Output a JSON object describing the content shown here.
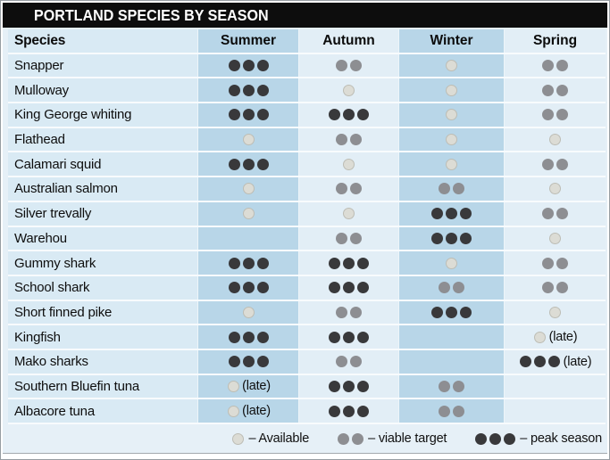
{
  "title": "PORTLAND SPECIES BY SEASON",
  "table": {
    "species_header": "Species",
    "season_headers": [
      "Summer",
      "Autumn",
      "Winter",
      "Spring"
    ]
  },
  "legend": {
    "items": [
      {
        "dots": 1,
        "label": "– Available"
      },
      {
        "dots": 2,
        "label": "– viable target"
      },
      {
        "dots": 3,
        "label": "– peak season"
      }
    ]
  },
  "colors": {
    "title_bar": "#0d0d0d",
    "canvas": "#e6f0f7",
    "band": "#b8d6e8",
    "row_species": "#d9eaf4",
    "row_light": "#e2eef6",
    "separator": "#f8fbfd",
    "dot_peak": "#39393b",
    "dot_viable": "#8d8e92",
    "dot_available_fill": "#dcdcd5",
    "dot_available_border": "#bdbdb5"
  },
  "chart_data": {
    "type": "table",
    "title": "PORTLAND SPECIES BY SEASON",
    "columns": [
      "Species",
      "Summer",
      "Autumn",
      "Winter",
      "Spring"
    ],
    "dot_scale": {
      "0": "not shown",
      "1": "Available",
      "2": "viable target",
      "3": "peak season"
    },
    "rows": [
      {
        "species": "Snapper",
        "summer": {
          "dots": 3
        },
        "autumn": {
          "dots": 2
        },
        "winter": {
          "dots": 1
        },
        "spring": {
          "dots": 2
        }
      },
      {
        "species": "Mulloway",
        "summer": {
          "dots": 3
        },
        "autumn": {
          "dots": 1
        },
        "winter": {
          "dots": 1
        },
        "spring": {
          "dots": 2
        }
      },
      {
        "species": "King George whiting",
        "summer": {
          "dots": 3
        },
        "autumn": {
          "dots": 3
        },
        "winter": {
          "dots": 1
        },
        "spring": {
          "dots": 2
        }
      },
      {
        "species": "Flathead",
        "summer": {
          "dots": 1
        },
        "autumn": {
          "dots": 2
        },
        "winter": {
          "dots": 1
        },
        "spring": {
          "dots": 1
        }
      },
      {
        "species": "Calamari squid",
        "summer": {
          "dots": 3
        },
        "autumn": {
          "dots": 1
        },
        "winter": {
          "dots": 1
        },
        "spring": {
          "dots": 2
        }
      },
      {
        "species": "Australian salmon",
        "summer": {
          "dots": 1
        },
        "autumn": {
          "dots": 2
        },
        "winter": {
          "dots": 2
        },
        "spring": {
          "dots": 1
        }
      },
      {
        "species": "Silver trevally",
        "summer": {
          "dots": 1
        },
        "autumn": {
          "dots": 1
        },
        "winter": {
          "dots": 3
        },
        "spring": {
          "dots": 2
        }
      },
      {
        "species": "Warehou",
        "summer": {
          "dots": 0
        },
        "autumn": {
          "dots": 2
        },
        "winter": {
          "dots": 3
        },
        "spring": {
          "dots": 1
        }
      },
      {
        "species": "Gummy shark",
        "summer": {
          "dots": 3
        },
        "autumn": {
          "dots": 3
        },
        "winter": {
          "dots": 1
        },
        "spring": {
          "dots": 2
        }
      },
      {
        "species": "School shark",
        "summer": {
          "dots": 3
        },
        "autumn": {
          "dots": 3
        },
        "winter": {
          "dots": 2
        },
        "spring": {
          "dots": 2
        }
      },
      {
        "species": "Short finned pike",
        "summer": {
          "dots": 1
        },
        "autumn": {
          "dots": 2
        },
        "winter": {
          "dots": 3
        },
        "spring": {
          "dots": 1
        }
      },
      {
        "species": "Kingfish",
        "summer": {
          "dots": 3
        },
        "autumn": {
          "dots": 3
        },
        "winter": {
          "dots": 0
        },
        "spring": {
          "dots": 1,
          "note": "(late)"
        }
      },
      {
        "species": "Mako sharks",
        "summer": {
          "dots": 3
        },
        "autumn": {
          "dots": 2
        },
        "winter": {
          "dots": 0
        },
        "spring": {
          "dots": 3,
          "note": "(late)"
        }
      },
      {
        "species": "Southern Bluefin tuna",
        "summer": {
          "dots": 1,
          "note": "(late)"
        },
        "autumn": {
          "dots": 3
        },
        "winter": {
          "dots": 2
        },
        "spring": {
          "dots": 0
        }
      },
      {
        "species": "Albacore tuna",
        "summer": {
          "dots": 1,
          "note": "(late)"
        },
        "autumn": {
          "dots": 3
        },
        "winter": {
          "dots": 2
        },
        "spring": {
          "dots": 0
        }
      }
    ]
  }
}
